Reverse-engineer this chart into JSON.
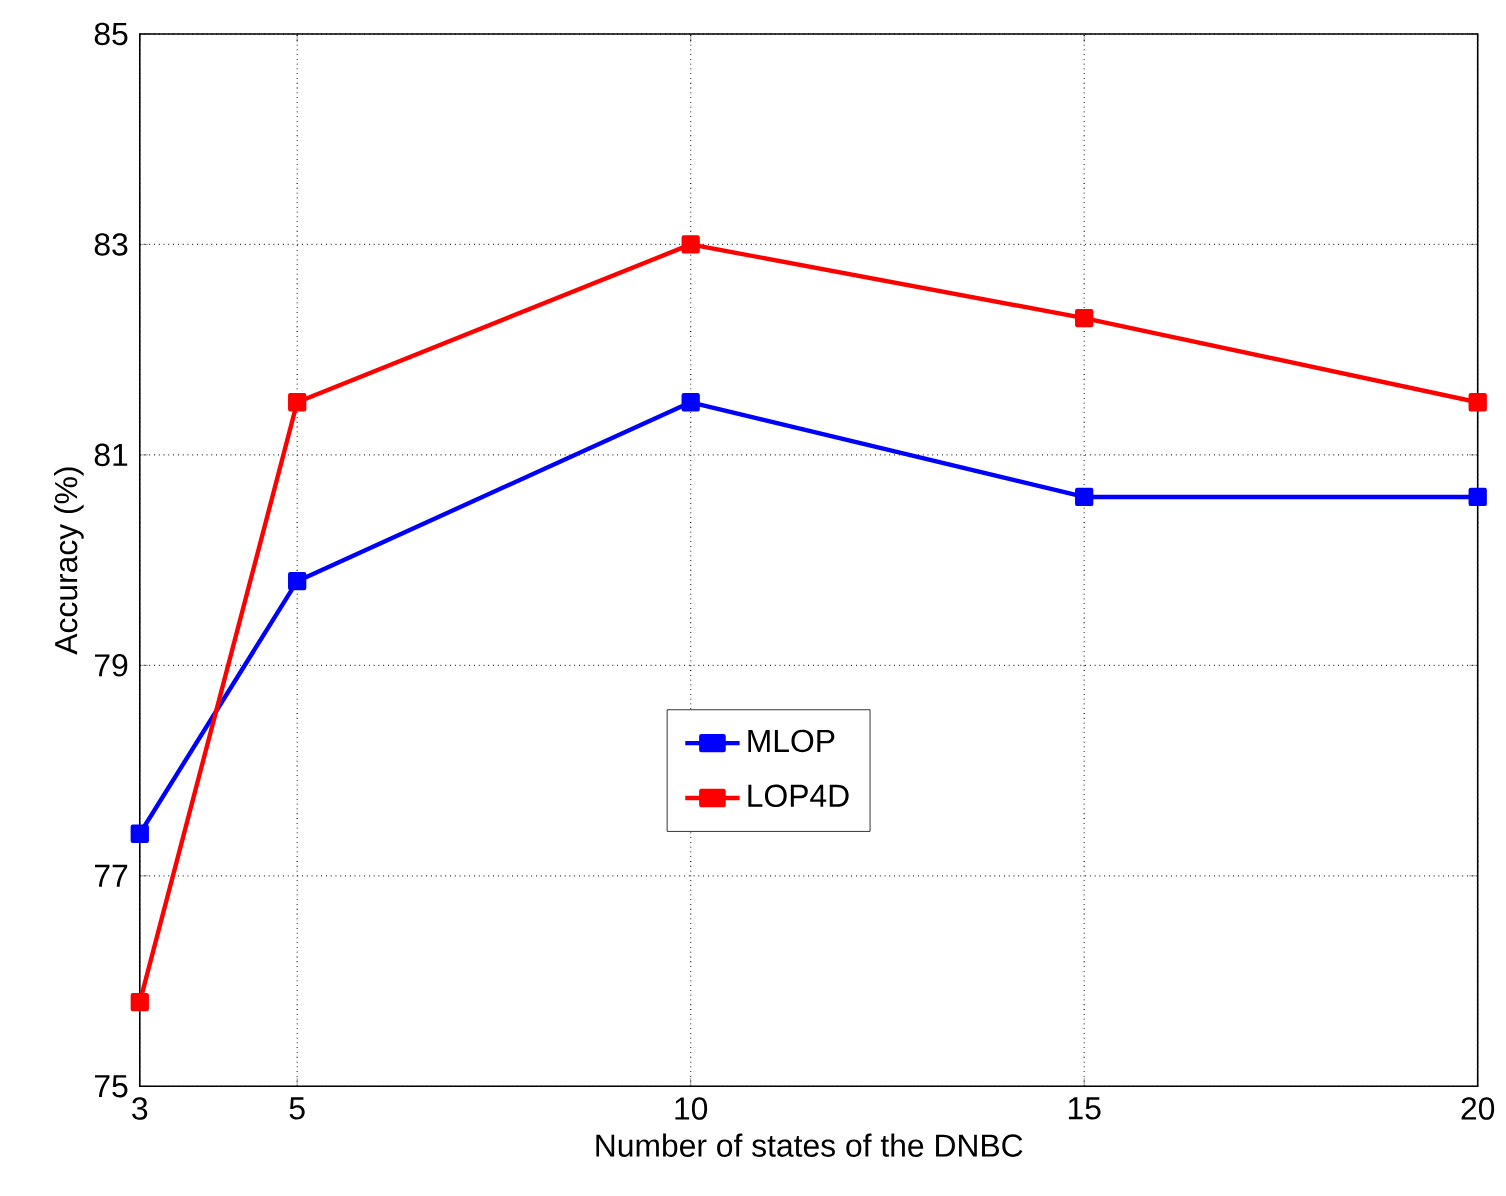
{
  "chart_data": {
    "type": "line",
    "xlabel": "Number of states of the DNBC",
    "ylabel": "Accuracy (%)",
    "x": [
      3,
      5,
      10,
      15,
      20
    ],
    "series": [
      {
        "name": "MLOP",
        "color": "#0000ff",
        "values": [
          77.4,
          79.8,
          81.5,
          80.6,
          80.6
        ]
      },
      {
        "name": "LOP4D",
        "color": "#ff0000",
        "values": [
          75.8,
          81.5,
          83.0,
          82.3,
          81.5
        ]
      }
    ],
    "xlim": [
      3,
      20
    ],
    "ylim": [
      75,
      85
    ],
    "xticks": [
      3,
      5,
      10,
      15,
      20
    ],
    "yticks": [
      75,
      77,
      79,
      81,
      83,
      85
    ],
    "grid": true,
    "legend": "center",
    "marker": "square",
    "line_style": "solid"
  }
}
